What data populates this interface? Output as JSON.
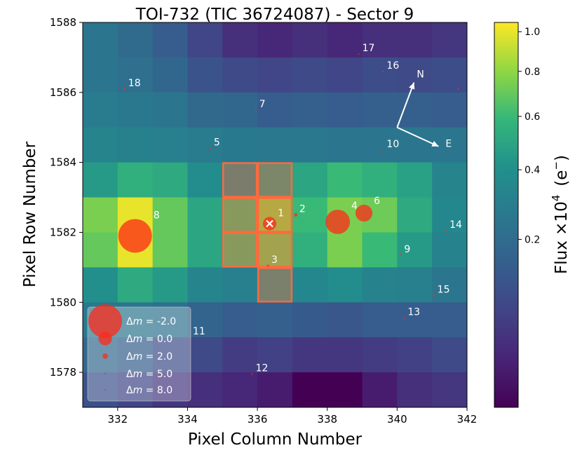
{
  "chart_data": {
    "type": "heatmap",
    "title": "TOI-732 (TIC 36724087) - Sector 9",
    "xlabel": "Pixel Column Number",
    "ylabel": "Pixel Row Number",
    "xlim": [
      331,
      342
    ],
    "ylim": [
      1577,
      1588
    ],
    "xticks": [
      332,
      334,
      336,
      338,
      340,
      342
    ],
    "yticks": [
      1578,
      1580,
      1582,
      1584,
      1586,
      1588
    ],
    "colorbar": {
      "label_base": "Flux ×10",
      "label_exp": "4",
      "label_unit_open": "(e",
      "label_unit_sup": "−",
      "label_unit_close": ")",
      "scale": "power",
      "vmin": 0.0,
      "vmax": 1.05,
      "ticks": [
        0.2,
        0.4,
        0.6,
        0.8,
        1.0
      ],
      "tick_labels": [
        "0.2",
        "0.4",
        "0.6",
        "0.8",
        "1.0"
      ]
    },
    "flux_grid_top_to_bottom": [
      [
        0.25,
        0.2,
        0.14,
        0.07,
        0.03,
        0.02,
        0.03,
        0.02,
        0.03,
        0.03,
        0.04
      ],
      [
        0.25,
        0.22,
        0.18,
        0.11,
        0.08,
        0.07,
        0.08,
        0.07,
        0.09,
        0.08,
        0.09
      ],
      [
        0.28,
        0.26,
        0.25,
        0.19,
        0.18,
        0.14,
        0.15,
        0.14,
        0.15,
        0.15,
        0.14
      ],
      [
        0.33,
        0.31,
        0.3,
        0.28,
        0.27,
        0.26,
        0.26,
        0.25,
        0.25,
        0.25,
        0.25
      ],
      [
        0.45,
        0.55,
        0.52,
        0.38,
        0.36,
        0.45,
        0.5,
        0.6,
        0.55,
        0.48,
        0.33
      ],
      [
        0.75,
        1.0,
        0.7,
        0.5,
        0.6,
        0.78,
        0.6,
        0.75,
        0.72,
        0.52,
        0.35
      ],
      [
        0.7,
        1.0,
        0.7,
        0.5,
        0.6,
        0.7,
        0.55,
        0.75,
        0.6,
        0.45,
        0.32
      ],
      [
        0.4,
        0.52,
        0.45,
        0.33,
        0.3,
        0.4,
        0.35,
        0.38,
        0.32,
        0.3,
        0.25
      ],
      [
        0.27,
        0.25,
        0.22,
        0.17,
        0.14,
        0.15,
        0.13,
        0.12,
        0.14,
        0.14,
        0.14
      ],
      [
        0.18,
        0.14,
        0.09,
        0.08,
        0.05,
        0.06,
        0.04,
        0.04,
        0.05,
        0.06,
        0.08
      ],
      [
        0.1,
        0.07,
        0.04,
        0.03,
        0.02,
        0.01,
        0.0,
        0.0,
        0.01,
        0.03,
        0.04
      ]
    ],
    "aperture_pixels": [
      {
        "col": 335,
        "row": 1583
      },
      {
        "col": 336,
        "row": 1583
      },
      {
        "col": 335,
        "row": 1582
      },
      {
        "col": 336,
        "row": 1582
      },
      {
        "col": 335,
        "row": 1581
      },
      {
        "col": 336,
        "row": 1581
      },
      {
        "col": 336,
        "row": 1580
      }
    ],
    "stars": [
      {
        "label": "1",
        "x": 336.35,
        "y": 1582.25,
        "dm": 0.0,
        "target": true
      },
      {
        "label": "2",
        "x": 337.1,
        "y": 1582.5,
        "dm": 3.0
      },
      {
        "label": "3",
        "x": 336.3,
        "y": 1581.05,
        "dm": 4.0
      },
      {
        "label": "4",
        "x": 338.3,
        "y": 1582.3,
        "dm": -1.3
      },
      {
        "label": "5",
        "x": 334.65,
        "y": 1584.4,
        "dm": 5.0
      },
      {
        "label": "6",
        "x": 339.05,
        "y": 1582.55,
        "dm": -0.5
      },
      {
        "label": "7",
        "x": 335.95,
        "y": 1585.5,
        "dm": 5.0
      },
      {
        "label": "8",
        "x": 332.5,
        "y": 1581.9,
        "dm": -2.0
      },
      {
        "label": "9",
        "x": 340.1,
        "y": 1581.35,
        "dm": 6.0
      },
      {
        "label": "10",
        "x": 339.6,
        "y": 1584.35,
        "dm": 6.0
      },
      {
        "label": "11",
        "x": 334.05,
        "y": 1579.0,
        "dm": 8.0
      },
      {
        "label": "12",
        "x": 335.85,
        "y": 1577.95,
        "dm": 6.0
      },
      {
        "label": "13",
        "x": 340.2,
        "y": 1579.55,
        "dm": 5.0
      },
      {
        "label": "14",
        "x": 341.4,
        "y": 1582.05,
        "dm": 7.0
      },
      {
        "label": "15",
        "x": 341.05,
        "y": 1580.2,
        "dm": 4.0
      },
      {
        "label": "16",
        "x": 339.6,
        "y": 1586.6,
        "dm": 6.0
      },
      {
        "label": "17",
        "x": 338.9,
        "y": 1587.1,
        "dm": 7.0
      },
      {
        "label": "18",
        "x": 332.2,
        "y": 1586.1,
        "dm": 4.0
      }
    ],
    "off_edge_star": {
      "x": 341.75,
      "y": 1586.1,
      "dm": 8.0
    },
    "compass": {
      "north": "N",
      "east": "E"
    },
    "legend": {
      "location": "lower-left",
      "entries": [
        {
          "prefix": "Δ",
          "var": "m",
          "text": " =  -2.0",
          "dm": -2.0
        },
        {
          "prefix": "Δ",
          "var": "m",
          "text": " =  0.0",
          "dm": 0.0
        },
        {
          "prefix": "Δ",
          "var": "m",
          "text": " =  2.0",
          "dm": 2.0
        },
        {
          "prefix": "Δ",
          "var": "m",
          "text": " =  5.0",
          "dm": 5.0
        },
        {
          "prefix": "Δ",
          "var": "m",
          "text": " =  8.0",
          "dm": 8.0
        }
      ]
    }
  },
  "colors": {
    "marker": "#ff2a1a",
    "aperture": "#ff6a3d",
    "aperture_fill": "#ff6a3d",
    "target_x": "#ffffff",
    "text_on_plot": "#ffffff"
  }
}
